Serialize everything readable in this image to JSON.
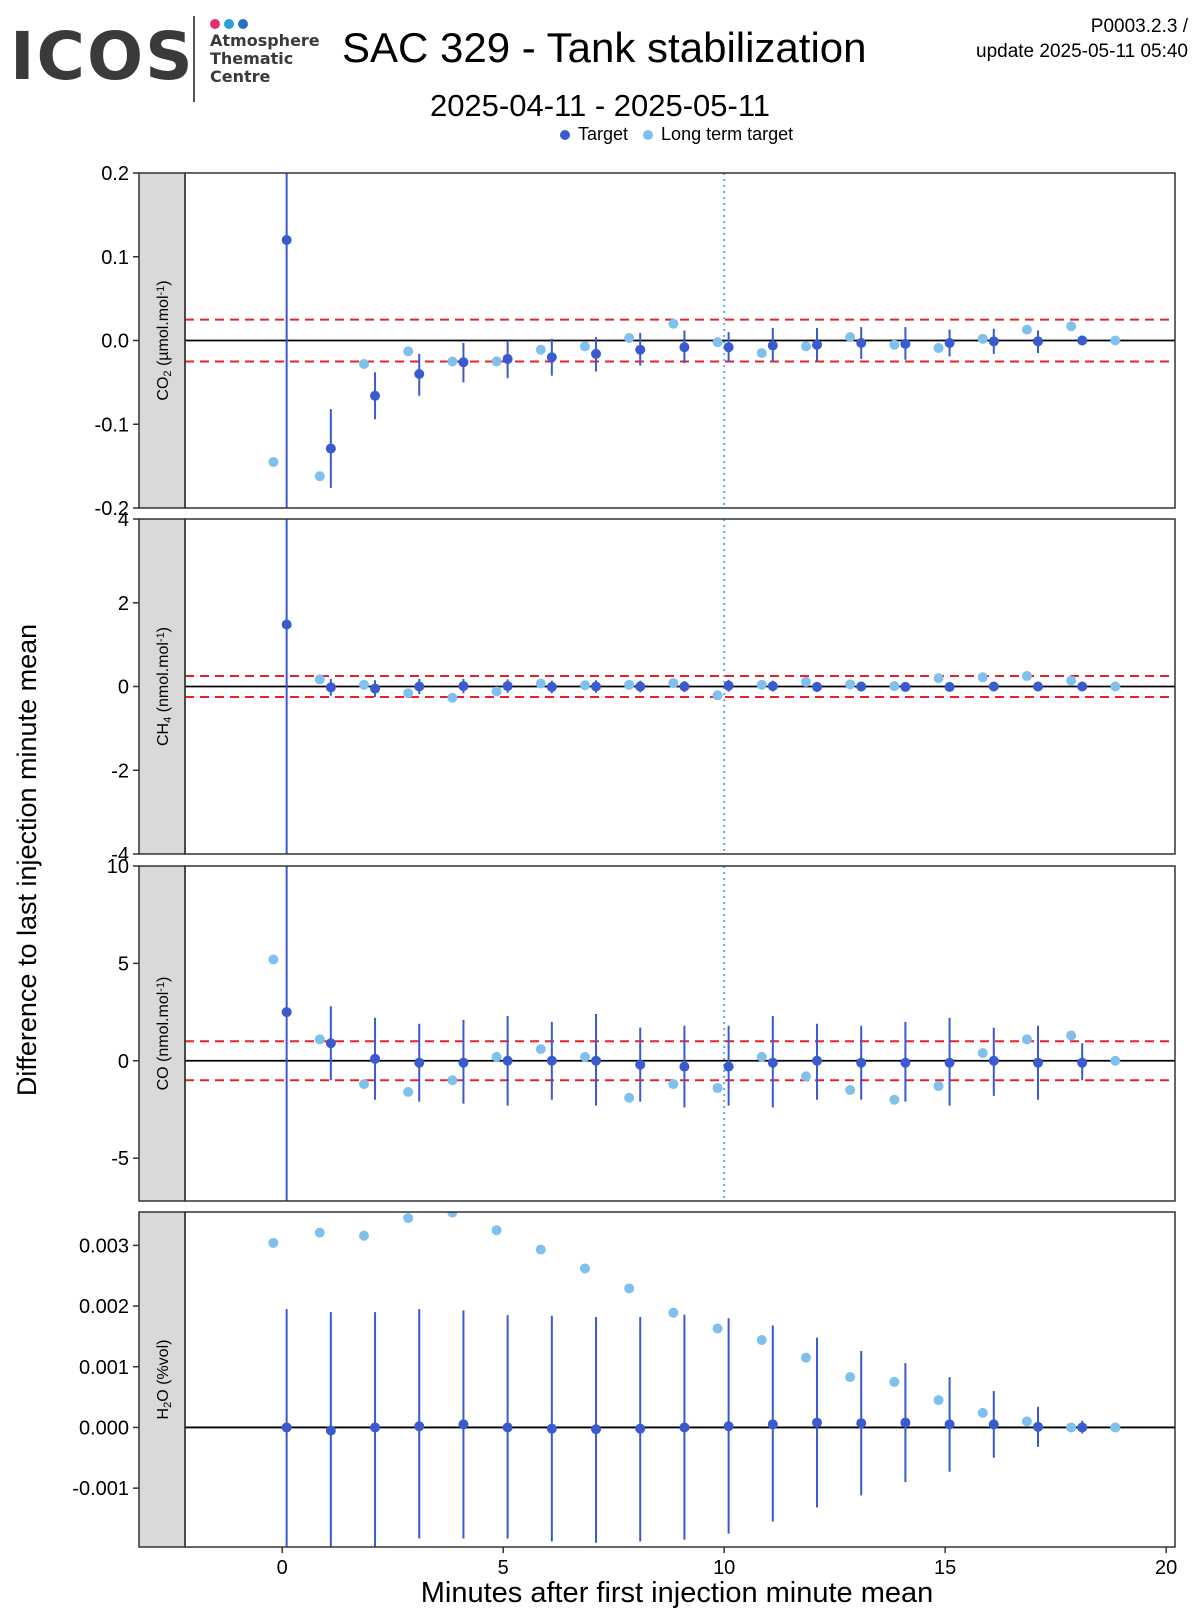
{
  "header": {
    "logo_text": "ICOS",
    "logo_subtitle": [
      "Atmosphere",
      "Thematic",
      "Centre"
    ],
    "title": "SAC 329 - Tank stabilization",
    "date_range": "2025-04-11 - 2025-05-11",
    "version_line1": "P0003.2.3 /",
    "version_line2": "update  2025-05-11 05:40"
  },
  "colors": {
    "target": "#3a5bcf",
    "long_term_target": "#80c0ec",
    "threshold": "#e8202a",
    "zero_line": "#000000",
    "vline": "#5aaee6",
    "strip_bg": "#d9d9d9",
    "logo_dots": [
      "#e0306e",
      "#2aa0d8",
      "#2b70c8"
    ]
  },
  "legend": {
    "items": [
      {
        "label": "Target",
        "color": "#3a5bcf"
      },
      {
        "label": "Long term target",
        "color": "#80c0ec"
      }
    ]
  },
  "chart_data": {
    "type": "scatter",
    "layout": "faceted, 4 vertically stacked panels sharing x axis",
    "xlabel": "Minutes after first injection minute mean",
    "ylabel": "Difference to last injection minute mean",
    "xlim": [
      -2.2,
      20.2
    ],
    "x_ticks": [
      0,
      5,
      10,
      15,
      20
    ],
    "vertical_reference_line": {
      "x": 10,
      "style": "dotted",
      "panels": [
        "CO2",
        "CH4",
        "CO"
      ]
    },
    "grid": false,
    "legend_position": "top",
    "panels": [
      {
        "id": "CO2",
        "strip_main": "CO",
        "strip_sub": "2",
        "strip_unit": " (µmol.mol",
        "strip_sup": "-1",
        "strip_end": ")",
        "ylim": [
          -0.2,
          0.2
        ],
        "y_ticks": [
          {
            "v": -0.2,
            "label": "-0.2"
          },
          {
            "v": -0.1,
            "label": "-0.1"
          },
          {
            "v": 0,
            "label": "0.0"
          },
          {
            "v": 0.1,
            "label": "0.1"
          },
          {
            "v": 0.2,
            "label": "0.2"
          }
        ],
        "thresholds": [
          -0.025,
          0.025
        ],
        "target": [
          {
            "x": 0.1,
            "y": 0.12,
            "lo": -0.3,
            "hi": 0.3
          },
          {
            "x": 1.1,
            "y": -0.129,
            "lo": -0.176,
            "hi": -0.082
          },
          {
            "x": 2.1,
            "y": -0.066,
            "lo": -0.094,
            "hi": -0.038
          },
          {
            "x": 3.1,
            "y": -0.04,
            "lo": -0.066,
            "hi": -0.016
          },
          {
            "x": 4.1,
            "y": -0.026,
            "lo": -0.05,
            "hi": -0.003
          },
          {
            "x": 5.1,
            "y": -0.022,
            "lo": -0.045,
            "hi": 0.0
          },
          {
            "x": 6.1,
            "y": -0.02,
            "lo": -0.042,
            "hi": 0.002
          },
          {
            "x": 7.1,
            "y": -0.016,
            "lo": -0.037,
            "hi": 0.004
          },
          {
            "x": 8.1,
            "y": -0.011,
            "lo": -0.03,
            "hi": 0.009
          },
          {
            "x": 9.1,
            "y": -0.008,
            "lo": -0.027,
            "hi": 0.012
          },
          {
            "x": 10.1,
            "y": -0.008,
            "lo": -0.026,
            "hi": 0.01
          },
          {
            "x": 11.1,
            "y": -0.006,
            "lo": -0.025,
            "hi": 0.015
          },
          {
            "x": 12.1,
            "y": -0.005,
            "lo": -0.024,
            "hi": 0.015
          },
          {
            "x": 13.1,
            "y": -0.003,
            "lo": -0.022,
            "hi": 0.016
          },
          {
            "x": 14.1,
            "y": -0.004,
            "lo": -0.023,
            "hi": 0.016
          },
          {
            "x": 15.1,
            "y": -0.003,
            "lo": -0.019,
            "hi": 0.013
          },
          {
            "x": 16.1,
            "y": -0.001,
            "lo": -0.016,
            "hi": 0.014
          },
          {
            "x": 17.1,
            "y": -0.001,
            "lo": -0.015,
            "hi": 0.012
          },
          {
            "x": 18.1,
            "y": 0.0,
            "lo": -0.006,
            "hi": 0.006
          }
        ],
        "long_term": [
          {
            "x": -0.2,
            "y": -0.145
          },
          {
            "x": 0.85,
            "y": -0.162
          },
          {
            "x": 1.85,
            "y": -0.028
          },
          {
            "x": 2.85,
            "y": -0.013
          },
          {
            "x": 3.85,
            "y": -0.025
          },
          {
            "x": 4.85,
            "y": -0.025
          },
          {
            "x": 5.85,
            "y": -0.011
          },
          {
            "x": 6.85,
            "y": -0.007
          },
          {
            "x": 7.85,
            "y": 0.003
          },
          {
            "x": 8.85,
            "y": 0.02
          },
          {
            "x": 9.85,
            "y": -0.002
          },
          {
            "x": 10.85,
            "y": -0.015
          },
          {
            "x": 11.85,
            "y": -0.007
          },
          {
            "x": 12.85,
            "y": 0.004
          },
          {
            "x": 13.85,
            "y": -0.005
          },
          {
            "x": 14.85,
            "y": -0.009
          },
          {
            "x": 15.85,
            "y": 0.002
          },
          {
            "x": 16.85,
            "y": 0.013
          },
          {
            "x": 17.85,
            "y": 0.017
          },
          {
            "x": 18.85,
            "y": 0.0
          }
        ]
      },
      {
        "id": "CH4",
        "strip_main": "CH",
        "strip_sub": "4",
        "strip_unit": " (nmol.mol",
        "strip_sup": "-1",
        "strip_end": ")",
        "ylim": [
          -4,
          4
        ],
        "y_ticks": [
          {
            "v": -4,
            "label": "-4"
          },
          {
            "v": -2,
            "label": "-2"
          },
          {
            "v": 0,
            "label": "0"
          },
          {
            "v": 2,
            "label": "2"
          },
          {
            "v": 4,
            "label": "4"
          }
        ],
        "thresholds": [
          -0.25,
          0.25
        ],
        "target": [
          {
            "x": 0.1,
            "y": 1.48,
            "lo": -5,
            "hi": 5
          },
          {
            "x": 1.1,
            "y": -0.02,
            "lo": -0.22,
            "hi": 0.18
          },
          {
            "x": 2.1,
            "y": -0.05,
            "lo": -0.25,
            "hi": 0.15
          },
          {
            "x": 3.1,
            "y": 0.0,
            "lo": -0.18,
            "hi": 0.18
          },
          {
            "x": 4.1,
            "y": 0.01,
            "lo": -0.16,
            "hi": 0.18
          },
          {
            "x": 5.1,
            "y": 0.01,
            "lo": -0.15,
            "hi": 0.17
          },
          {
            "x": 6.1,
            "y": -0.01,
            "lo": -0.16,
            "hi": 0.14
          },
          {
            "x": 7.1,
            "y": 0.0,
            "lo": -0.15,
            "hi": 0.15
          },
          {
            "x": 8.1,
            "y": 0.0,
            "lo": -0.14,
            "hi": 0.14
          },
          {
            "x": 9.1,
            "y": 0.0,
            "lo": -0.13,
            "hi": 0.13
          },
          {
            "x": 10.1,
            "y": 0.02,
            "lo": -0.12,
            "hi": 0.16
          },
          {
            "x": 11.1,
            "y": 0.01,
            "lo": -0.12,
            "hi": 0.14
          },
          {
            "x": 12.1,
            "y": -0.01,
            "lo": -0.13,
            "hi": 0.11
          },
          {
            "x": 13.1,
            "y": 0.0,
            "lo": -0.12,
            "hi": 0.12
          },
          {
            "x": 14.1,
            "y": -0.01,
            "lo": -0.12,
            "hi": 0.1
          },
          {
            "x": 15.1,
            "y": -0.01,
            "lo": -0.11,
            "hi": 0.09
          },
          {
            "x": 16.1,
            "y": 0.0,
            "lo": -0.09,
            "hi": 0.09
          },
          {
            "x": 17.1,
            "y": 0.0,
            "lo": -0.08,
            "hi": 0.08
          },
          {
            "x": 18.1,
            "y": 0.0,
            "lo": -0.04,
            "hi": 0.04
          }
        ],
        "long_term": [
          {
            "x": 0.85,
            "y": 0.17
          },
          {
            "x": 1.85,
            "y": 0.04
          },
          {
            "x": 2.85,
            "y": -0.16
          },
          {
            "x": 3.85,
            "y": -0.27
          },
          {
            "x": 4.85,
            "y": -0.12
          },
          {
            "x": 5.85,
            "y": 0.07
          },
          {
            "x": 6.85,
            "y": 0.03
          },
          {
            "x": 7.85,
            "y": 0.04
          },
          {
            "x": 8.85,
            "y": 0.08
          },
          {
            "x": 9.85,
            "y": -0.21
          },
          {
            "x": 10.85,
            "y": 0.04
          },
          {
            "x": 11.85,
            "y": 0.11
          },
          {
            "x": 12.85,
            "y": 0.05
          },
          {
            "x": 13.85,
            "y": 0.01
          },
          {
            "x": 14.85,
            "y": 0.2
          },
          {
            "x": 15.85,
            "y": 0.22
          },
          {
            "x": 16.85,
            "y": 0.25
          },
          {
            "x": 17.85,
            "y": 0.14
          },
          {
            "x": 18.85,
            "y": 0.0
          }
        ]
      },
      {
        "id": "CO",
        "strip_main": "CO",
        "strip_sub": "",
        "strip_unit": " (nmol.mol",
        "strip_sup": "-1",
        "strip_end": ")",
        "ylim": [
          -7.2,
          10
        ],
        "y_ticks": [
          {
            "v": -5,
            "label": "-5"
          },
          {
            "v": 0,
            "label": "0"
          },
          {
            "v": 5,
            "label": "5"
          },
          {
            "v": 10,
            "label": "10"
          }
        ],
        "thresholds": [
          -1,
          1
        ],
        "target": [
          {
            "x": 0.1,
            "y": 2.5,
            "lo": -8,
            "hi": 11
          },
          {
            "x": 1.1,
            "y": 0.9,
            "lo": -1.0,
            "hi": 2.8
          },
          {
            "x": 2.1,
            "y": 0.1,
            "lo": -2.0,
            "hi": 2.2
          },
          {
            "x": 3.1,
            "y": -0.1,
            "lo": -2.1,
            "hi": 1.9
          },
          {
            "x": 4.1,
            "y": -0.1,
            "lo": -2.2,
            "hi": 2.1
          },
          {
            "x": 5.1,
            "y": 0.0,
            "lo": -2.3,
            "hi": 2.3
          },
          {
            "x": 6.1,
            "y": 0.0,
            "lo": -2.0,
            "hi": 2.0
          },
          {
            "x": 7.1,
            "y": 0.0,
            "lo": -2.3,
            "hi": 2.4
          },
          {
            "x": 8.1,
            "y": -0.2,
            "lo": -2.1,
            "hi": 1.7
          },
          {
            "x": 9.1,
            "y": -0.3,
            "lo": -2.4,
            "hi": 1.8
          },
          {
            "x": 10.1,
            "y": -0.3,
            "lo": -2.3,
            "hi": 1.8
          },
          {
            "x": 11.1,
            "y": -0.1,
            "lo": -2.4,
            "hi": 2.3
          },
          {
            "x": 12.1,
            "y": 0.0,
            "lo": -2.0,
            "hi": 1.9
          },
          {
            "x": 13.1,
            "y": -0.1,
            "lo": -2.0,
            "hi": 1.8
          },
          {
            "x": 14.1,
            "y": -0.1,
            "lo": -2.1,
            "hi": 2.0
          },
          {
            "x": 15.1,
            "y": -0.1,
            "lo": -2.3,
            "hi": 2.2
          },
          {
            "x": 16.1,
            "y": 0.0,
            "lo": -1.8,
            "hi": 1.7
          },
          {
            "x": 17.1,
            "y": -0.1,
            "lo": -2.0,
            "hi": 1.8
          },
          {
            "x": 18.1,
            "y": -0.1,
            "lo": -1.0,
            "hi": 0.9
          }
        ],
        "long_term": [
          {
            "x": -0.2,
            "y": 5.2
          },
          {
            "x": 0.85,
            "y": 1.1
          },
          {
            "x": 1.85,
            "y": -1.2
          },
          {
            "x": 2.85,
            "y": -1.6
          },
          {
            "x": 3.85,
            "y": -1.0
          },
          {
            "x": 4.85,
            "y": 0.2
          },
          {
            "x": 5.85,
            "y": 0.6
          },
          {
            "x": 6.85,
            "y": 0.2
          },
          {
            "x": 7.85,
            "y": -1.9
          },
          {
            "x": 8.85,
            "y": -1.2
          },
          {
            "x": 9.85,
            "y": -1.4
          },
          {
            "x": 10.85,
            "y": 0.2
          },
          {
            "x": 11.85,
            "y": -0.8
          },
          {
            "x": 12.85,
            "y": -1.5
          },
          {
            "x": 13.85,
            "y": -2.0
          },
          {
            "x": 14.85,
            "y": -1.3
          },
          {
            "x": 15.85,
            "y": 0.4
          },
          {
            "x": 16.85,
            "y": 1.1
          },
          {
            "x": 17.85,
            "y": 1.3
          },
          {
            "x": 18.85,
            "y": 0.0
          }
        ]
      },
      {
        "id": "H2O",
        "strip_main": "H",
        "strip_sub": "2",
        "strip_unit": "O (%vol)",
        "strip_sup": "",
        "strip_end": "",
        "ylim": [
          -0.00197,
          0.00355
        ],
        "y_ticks": [
          {
            "v": -0.001,
            "label": "-0.001"
          },
          {
            "v": 0,
            "label": "0.000"
          },
          {
            "v": 0.001,
            "label": "0.001"
          },
          {
            "v": 0.002,
            "label": "0.002"
          },
          {
            "v": 0.003,
            "label": "0.003"
          }
        ],
        "thresholds": [],
        "target": [
          {
            "x": 0.1,
            "y": 0.0,
            "lo": -0.0021,
            "hi": 0.00195
          },
          {
            "x": 1.1,
            "y": -5e-05,
            "lo": -0.0021,
            "hi": 0.0019
          },
          {
            "x": 2.1,
            "y": 0.0,
            "lo": -0.0021,
            "hi": 0.0019
          },
          {
            "x": 3.1,
            "y": 2e-05,
            "lo": -0.00183,
            "hi": 0.00195
          },
          {
            "x": 4.1,
            "y": 5e-05,
            "lo": -0.00183,
            "hi": 0.00193
          },
          {
            "x": 5.1,
            "y": 0.0,
            "lo": -0.00183,
            "hi": 0.00185
          },
          {
            "x": 6.1,
            "y": -2e-05,
            "lo": -0.00188,
            "hi": 0.00184
          },
          {
            "x": 7.1,
            "y": -3e-05,
            "lo": -0.0019,
            "hi": 0.00182
          },
          {
            "x": 8.1,
            "y": -2e-05,
            "lo": -0.00188,
            "hi": 0.00182
          },
          {
            "x": 9.1,
            "y": 0.0,
            "lo": -0.00185,
            "hi": 0.00186
          },
          {
            "x": 10.1,
            "y": 2e-05,
            "lo": -0.00175,
            "hi": 0.0018
          },
          {
            "x": 11.1,
            "y": 5e-05,
            "lo": -0.00155,
            "hi": 0.00168
          },
          {
            "x": 12.1,
            "y": 8e-05,
            "lo": -0.00132,
            "hi": 0.00148
          },
          {
            "x": 13.1,
            "y": 7e-05,
            "lo": -0.00112,
            "hi": 0.00126
          },
          {
            "x": 14.1,
            "y": 8e-05,
            "lo": -0.0009,
            "hi": 0.00106
          },
          {
            "x": 15.1,
            "y": 5e-05,
            "lo": -0.00073,
            "hi": 0.00083
          },
          {
            "x": 16.1,
            "y": 5e-05,
            "lo": -0.0005,
            "hi": 0.0006
          },
          {
            "x": 17.1,
            "y": 1e-05,
            "lo": -0.00032,
            "hi": 0.00034
          },
          {
            "x": 18.1,
            "y": 0.0,
            "lo": -0.0001,
            "hi": 0.00011
          }
        ],
        "long_term": [
          {
            "x": -0.2,
            "y": 0.00304
          },
          {
            "x": 0.85,
            "y": 0.00321
          },
          {
            "x": 1.85,
            "y": 0.00316
          },
          {
            "x": 2.85,
            "y": 0.00345
          },
          {
            "x": 3.85,
            "y": 0.00354
          },
          {
            "x": 4.85,
            "y": 0.00325
          },
          {
            "x": 5.85,
            "y": 0.00293
          },
          {
            "x": 6.85,
            "y": 0.00262
          },
          {
            "x": 7.85,
            "y": 0.00229
          },
          {
            "x": 8.85,
            "y": 0.00189
          },
          {
            "x": 9.85,
            "y": 0.00163
          },
          {
            "x": 10.85,
            "y": 0.00144
          },
          {
            "x": 11.85,
            "y": 0.00115
          },
          {
            "x": 12.85,
            "y": 0.00083
          },
          {
            "x": 13.85,
            "y": 0.00075
          },
          {
            "x": 14.85,
            "y": 0.00045
          },
          {
            "x": 15.85,
            "y": 0.00024
          },
          {
            "x": 16.85,
            "y": 0.0001
          },
          {
            "x": 17.85,
            "y": 0.0
          },
          {
            "x": 18.85,
            "y": 0.0
          }
        ]
      }
    ]
  }
}
